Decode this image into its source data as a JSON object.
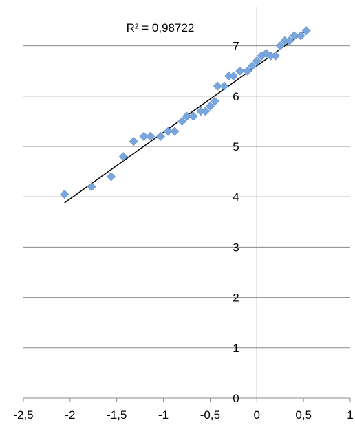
{
  "chart_data": {
    "type": "scatter",
    "title": "",
    "xlabel": "",
    "ylabel": "",
    "xlim": [
      -2.5,
      1
    ],
    "ylim": [
      0,
      7.5
    ],
    "grid": "horizontal",
    "x_ticks": [
      "-2,5",
      "-2",
      "-1,5",
      "-1",
      "-0,5",
      "0",
      "0,5",
      "1"
    ],
    "y_ticks": [
      "0",
      "1",
      "2",
      "3",
      "4",
      "5",
      "6",
      "7"
    ],
    "annotation": "R² = 0,98722",
    "colors": {
      "marker": "#7aa6de",
      "trendline": "#000000",
      "grid": "#8a8a8a",
      "axis": "#8a8a8a"
    },
    "series": [
      {
        "values": [
          [
            -2.06,
            4.05
          ],
          [
            -1.77,
            4.2
          ],
          [
            -1.56,
            4.4
          ],
          [
            -1.43,
            4.8
          ],
          [
            -1.32,
            5.1
          ],
          [
            -1.21,
            5.2
          ],
          [
            -1.14,
            5.2
          ],
          [
            -1.03,
            5.2
          ],
          [
            -0.95,
            5.3
          ],
          [
            -0.88,
            5.3
          ],
          [
            -0.8,
            5.5
          ],
          [
            -0.75,
            5.6
          ],
          [
            -0.68,
            5.6
          ],
          [
            -0.6,
            5.7
          ],
          [
            -0.55,
            5.7
          ],
          [
            -0.5,
            5.8
          ],
          [
            -0.45,
            5.9
          ],
          [
            -0.42,
            6.2
          ],
          [
            -0.35,
            6.2
          ],
          [
            -0.3,
            6.4
          ],
          [
            -0.25,
            6.4
          ],
          [
            -0.18,
            6.5
          ],
          [
            -0.1,
            6.5
          ],
          [
            -0.05,
            6.6
          ],
          [
            0.0,
            6.7
          ],
          [
            0.05,
            6.8
          ],
          [
            0.1,
            6.85
          ],
          [
            0.15,
            6.8
          ],
          [
            0.2,
            6.8
          ],
          [
            0.25,
            7.0
          ],
          [
            0.3,
            7.1
          ],
          [
            0.35,
            7.1
          ],
          [
            0.4,
            7.2
          ],
          [
            0.47,
            7.2
          ],
          [
            0.53,
            7.3
          ]
        ]
      }
    ],
    "trendline": {
      "type": "linear",
      "x": [
        -2.06,
        0.55
      ],
      "y": [
        3.88,
        7.33
      ]
    }
  }
}
